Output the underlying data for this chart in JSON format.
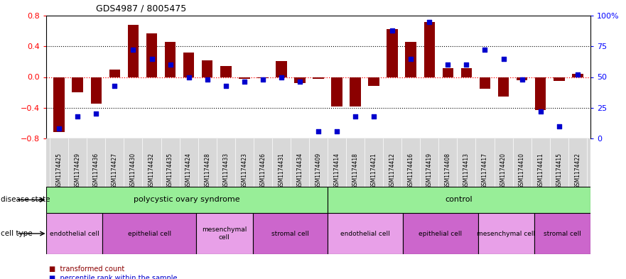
{
  "title": "GDS4987 / 8005475",
  "samples": [
    "GSM1174425",
    "GSM1174429",
    "GSM1174436",
    "GSM1174427",
    "GSM1174430",
    "GSM1174432",
    "GSM1174435",
    "GSM1174424",
    "GSM1174428",
    "GSM1174433",
    "GSM1174423",
    "GSM1174426",
    "GSM1174431",
    "GSM1174434",
    "GSM1174409",
    "GSM1174414",
    "GSM1174418",
    "GSM1174421",
    "GSM1174412",
    "GSM1174416",
    "GSM1174419",
    "GSM1174408",
    "GSM1174413",
    "GSM1174417",
    "GSM1174420",
    "GSM1174410",
    "GSM1174411",
    "GSM1174415",
    "GSM1174422"
  ],
  "bar_values": [
    -0.72,
    -0.2,
    -0.35,
    0.1,
    0.68,
    0.57,
    0.46,
    0.32,
    0.22,
    0.14,
    -0.02,
    -0.01,
    0.21,
    -0.08,
    -0.02,
    -0.38,
    -0.38,
    -0.12,
    0.62,
    0.46,
    0.72,
    0.12,
    0.12,
    -0.15,
    -0.25,
    -0.04,
    -0.43,
    -0.05,
    0.04
  ],
  "dot_values_pct": [
    8,
    18,
    20,
    43,
    72,
    65,
    60,
    50,
    48,
    43,
    46,
    48,
    50,
    46,
    6,
    6,
    18,
    18,
    88,
    65,
    95,
    60,
    60,
    72,
    65,
    48,
    22,
    10,
    52
  ],
  "bar_color": "#8B0000",
  "dot_color": "#0000CD",
  "ylim_left": [
    -0.8,
    0.8
  ],
  "yticks_left": [
    -0.8,
    -0.4,
    0.0,
    0.4,
    0.8
  ],
  "ytick_right_labels": [
    "0",
    "25",
    "50",
    "75",
    "100%"
  ],
  "yticks_right": [
    0,
    25,
    50,
    75,
    100
  ],
  "disease_groups": [
    {
      "label": "polycystic ovary syndrome",
      "start": 0,
      "end": 15,
      "color": "#98EE98"
    },
    {
      "label": "control",
      "start": 15,
      "end": 29,
      "color": "#98EE98"
    }
  ],
  "cell_type_groups": [
    {
      "label": "endothelial cell",
      "start": 0,
      "end": 3,
      "color": "#E8A0E8"
    },
    {
      "label": "epithelial cell",
      "start": 3,
      "end": 8,
      "color": "#CC66CC"
    },
    {
      "label": "mesenchymal\ncell",
      "start": 8,
      "end": 11,
      "color": "#E8A0E8"
    },
    {
      "label": "stromal cell",
      "start": 11,
      "end": 15,
      "color": "#CC66CC"
    },
    {
      "label": "endothelial cell",
      "start": 15,
      "end": 19,
      "color": "#E8A0E8"
    },
    {
      "label": "epithelial cell",
      "start": 19,
      "end": 23,
      "color": "#CC66CC"
    },
    {
      "label": "mesenchymal cell",
      "start": 23,
      "end": 26,
      "color": "#E8A0E8"
    },
    {
      "label": "stromal cell",
      "start": 26,
      "end": 29,
      "color": "#CC66CC"
    }
  ],
  "bg_color": "#FFFFFF",
  "xtick_bg": "#D8D8D8",
  "label_disease_state": "disease state",
  "label_cell_type": "cell type",
  "legend_bar": "transformed count",
  "legend_dot": "percentile rank within the sample"
}
